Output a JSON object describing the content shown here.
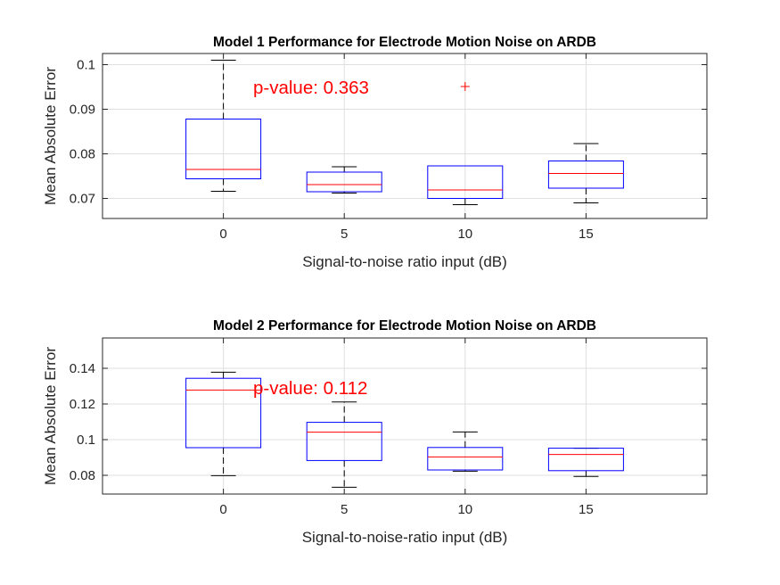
{
  "chart_data": [
    {
      "type": "box",
      "title": "Model 1 Performance for Electrode Motion Noise on ARDB",
      "xlabel": "Signal-to-noise ratio input (dB)",
      "ylabel": "Mean Absolute Error",
      "categories": [
        "0",
        "5",
        "10",
        "15"
      ],
      "ylim": [
        0.0655,
        0.1025
      ],
      "yticks": [
        0.07,
        0.08,
        0.09,
        0.1
      ],
      "ytick_labels": [
        "0.07",
        "0.08",
        "0.09",
        "0.1"
      ],
      "grid": true,
      "boxes": [
        {
          "whisker_low": 0.0716,
          "q1": 0.0744,
          "median": 0.0765,
          "q3": 0.0878,
          "whisker_high": 0.101,
          "outliers": []
        },
        {
          "whisker_low": 0.0712,
          "q1": 0.0715,
          "median": 0.0731,
          "q3": 0.0759,
          "whisker_high": 0.0771,
          "outliers": []
        },
        {
          "whisker_low": 0.0686,
          "q1": 0.07,
          "median": 0.0719,
          "q3": 0.0773,
          "whisker_high": 0.0773,
          "outliers": [
            0.0951
          ]
        },
        {
          "whisker_low": 0.069,
          "q1": 0.0723,
          "median": 0.0756,
          "q3": 0.0784,
          "whisker_high": 0.0823,
          "outliers": []
        }
      ],
      "annotation": "p-value: 0.363"
    },
    {
      "type": "box",
      "title": "Model 2 Performance for Electrode Motion Noise on ARDB",
      "xlabel": "Signal-to-noise-ratio input (dB)",
      "ylabel": "Mean Absolute Error",
      "categories": [
        "0",
        "5",
        "10",
        "15"
      ],
      "ylim": [
        0.0695,
        0.157
      ],
      "yticks": [
        0.08,
        0.1,
        0.12,
        0.14
      ],
      "ytick_labels": [
        "0.08",
        "0.1",
        "0.12",
        "0.14"
      ],
      "grid": true,
      "boxes": [
        {
          "whisker_low": 0.0798,
          "q1": 0.0955,
          "median": 0.1278,
          "q3": 0.1344,
          "whisker_high": 0.1378,
          "outliers": []
        },
        {
          "whisker_low": 0.0733,
          "q1": 0.0883,
          "median": 0.1042,
          "q3": 0.1097,
          "whisker_high": 0.1211,
          "outliers": []
        },
        {
          "whisker_low": 0.0823,
          "q1": 0.083,
          "median": 0.0903,
          "q3": 0.0956,
          "whisker_high": 0.1043,
          "outliers": []
        },
        {
          "whisker_low": 0.0794,
          "q1": 0.0826,
          "median": 0.0917,
          "q3": 0.0952,
          "whisker_high": 0.0952,
          "outliers": []
        }
      ],
      "annotation": "p-value: 0.112"
    }
  ],
  "style": {
    "box_color": "#0000ff",
    "median_color": "#ff0000",
    "whisker_color": "#000000",
    "outlier_color": "#ff0000",
    "annotation_color": "#ff0000",
    "grid_color": "#dfdfdf",
    "axis_color": "#262626"
  }
}
